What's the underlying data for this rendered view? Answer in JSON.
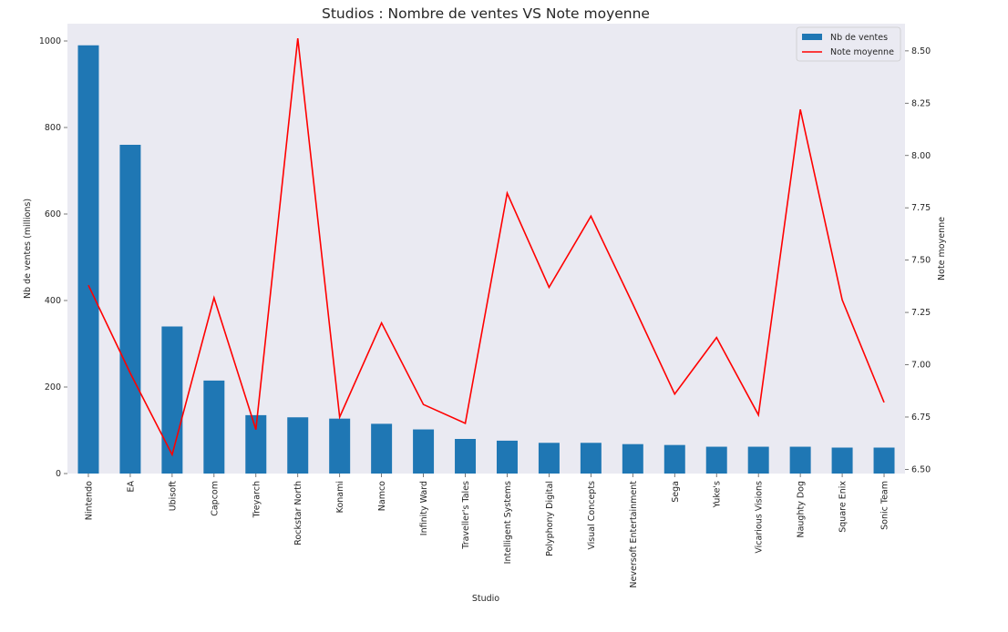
{
  "chart_data": {
    "type": "bar",
    "title": "Studios : Nombre de ventes VS Note moyenne",
    "xlabel": "Studio",
    "ylabel": "Nb de ventes (millions)",
    "y2label": "Note moyenne",
    "categories": [
      "Nintendo",
      "EA",
      "Ubisoft",
      "Capcom",
      "Treyarch",
      "Rockstar North",
      "Konami",
      "Namco",
      "Infinity Ward",
      "Traveller's Tales",
      "Intelligent Systems",
      "Polyphony Digital",
      "Visual Concepts",
      "Neversoft Entertainment",
      "Sega",
      "Yuke's",
      "Vicarious Visions",
      "Naughty Dog",
      "Square Enix",
      "Sonic Team"
    ],
    "series": [
      {
        "name": "Nb de ventes",
        "type": "bar",
        "axis": "left",
        "color": "#1f77b4",
        "values": [
          990,
          760,
          340,
          215,
          135,
          130,
          127,
          115,
          102,
          80,
          76,
          71,
          71,
          68,
          66,
          62,
          62,
          62,
          60,
          60
        ]
      },
      {
        "name": "Note moyenne",
        "type": "line",
        "axis": "right",
        "color": "#ff0000",
        "values": [
          7.38,
          6.96,
          6.57,
          7.32,
          6.69,
          8.56,
          6.75,
          7.2,
          6.81,
          6.72,
          7.82,
          7.37,
          7.71,
          7.29,
          6.86,
          7.13,
          6.76,
          8.22,
          7.31,
          6.82
        ]
      }
    ],
    "ylim": [
      0,
      1040
    ],
    "yticks": [
      0,
      200,
      400,
      600,
      800,
      1000
    ],
    "y2lim": [
      6.48,
      8.63
    ],
    "y2ticks": [
      "6.50",
      "6.75",
      "7.00",
      "7.25",
      "7.50",
      "7.75",
      "8.00",
      "8.25",
      "8.50"
    ],
    "grid": false,
    "legend_position": "top-right",
    "colors": {
      "plot_background": "#eaeaf2",
      "bar": "#1f77b4",
      "line": "#ff0000"
    }
  }
}
